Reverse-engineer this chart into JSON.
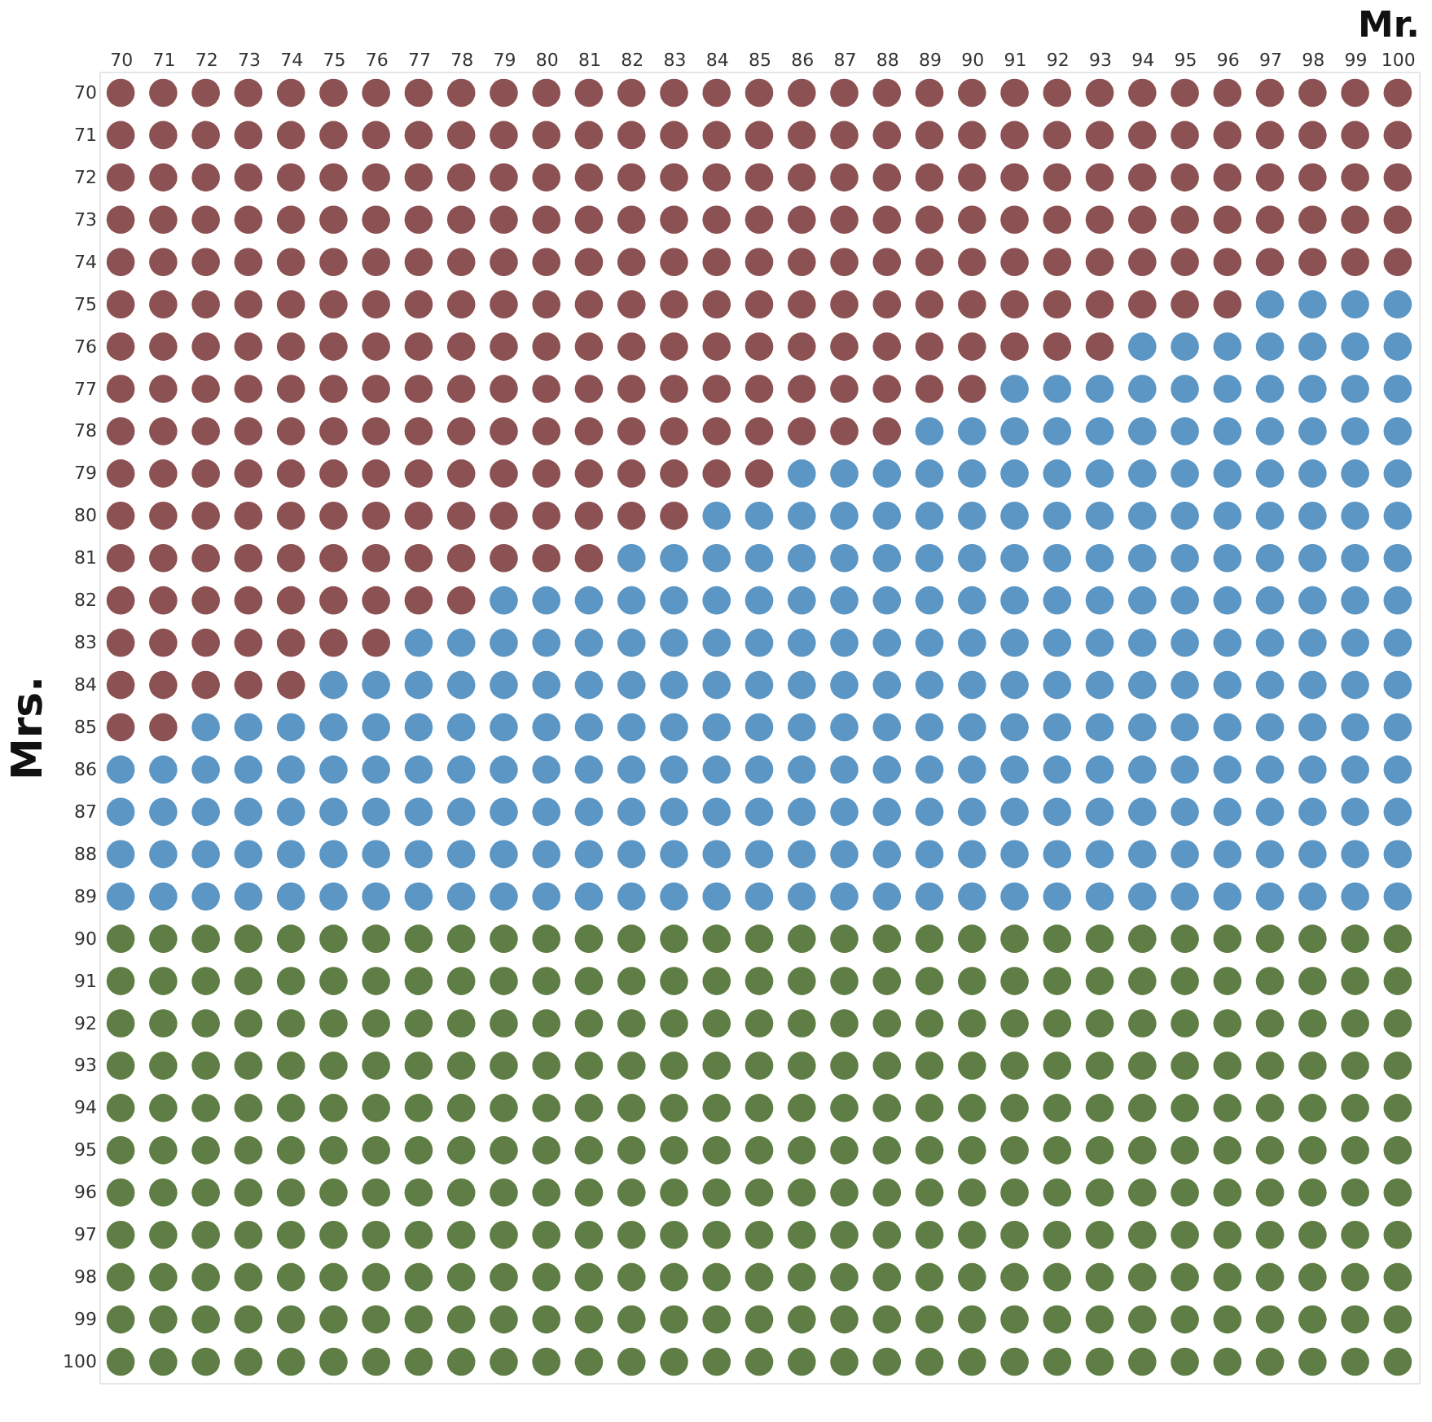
{
  "chart_data": {
    "type": "scatter",
    "xlabel": "Mr.",
    "ylabel": "Mrs.",
    "xlim": [
      69.5,
      100.5
    ],
    "ylim": [
      100.5,
      69.5
    ],
    "xticks": [
      70,
      71,
      72,
      73,
      74,
      75,
      76,
      77,
      78,
      79,
      80,
      81,
      82,
      83,
      84,
      85,
      86,
      87,
      88,
      89,
      90,
      91,
      92,
      93,
      94,
      95,
      96,
      97,
      98,
      99,
      100
    ],
    "yticks": [
      70,
      71,
      72,
      73,
      74,
      75,
      76,
      77,
      78,
      79,
      80,
      81,
      82,
      83,
      84,
      85,
      86,
      87,
      88,
      89,
      90,
      91,
      92,
      93,
      94,
      95,
      96,
      97,
      98,
      99,
      100
    ],
    "marker": "circle",
    "series": [
      {
        "color": "#8c5152",
        "x": [
          70,
          71,
          72,
          73,
          74,
          75,
          76,
          77,
          78,
          79,
          80,
          81,
          82,
          83,
          84,
          85,
          86,
          87,
          88,
          89,
          90,
          91,
          92,
          93,
          94,
          95,
          96,
          97,
          98,
          99,
          100,
          70,
          71,
          72,
          73,
          74,
          75,
          76,
          77,
          78,
          79,
          80,
          81,
          82,
          83,
          84,
          85,
          86,
          87,
          88,
          89,
          90,
          91,
          92,
          93,
          94,
          95,
          96,
          97,
          98,
          99,
          100,
          70,
          71,
          72,
          73,
          74,
          75,
          76,
          77,
          78,
          79,
          80,
          81,
          82,
          83,
          84,
          85,
          86,
          87,
          88,
          89,
          90,
          91,
          92,
          93,
          94,
          95,
          96,
          97,
          98,
          99,
          100,
          70,
          71,
          72,
          73,
          74,
          75,
          76,
          77,
          78,
          79,
          80,
          81,
          82,
          83,
          84,
          85,
          86,
          87,
          88,
          89,
          90,
          91,
          92,
          93,
          94,
          95,
          96,
          97,
          98,
          99,
          100,
          70,
          71,
          72,
          73,
          74,
          75,
          76,
          77,
          78,
          79,
          80,
          81,
          82,
          83,
          84,
          85,
          86,
          87,
          88,
          89,
          90,
          91,
          92,
          93,
          94,
          95,
          96,
          97,
          98,
          99,
          100,
          70,
          71,
          72,
          73,
          74,
          75,
          76,
          77,
          78,
          79,
          80,
          81,
          82,
          83,
          84,
          85,
          86,
          87,
          88,
          89,
          90,
          91,
          92,
          93,
          94,
          95,
          96,
          70,
          71,
          72,
          73,
          74,
          75,
          76,
          77,
          78,
          79,
          80,
          81,
          82,
          83,
          84,
          85,
          86,
          87,
          88,
          89,
          90,
          91,
          92,
          93,
          70,
          71,
          72,
          73,
          74,
          75,
          76,
          77,
          78,
          79,
          80,
          81,
          82,
          83,
          84,
          85,
          86,
          87,
          88,
          89,
          90,
          70,
          71,
          72,
          73,
          74,
          75,
          76,
          77,
          78,
          79,
          80,
          81,
          82,
          83,
          84,
          85,
          86,
          87,
          88,
          70,
          71,
          72,
          73,
          74,
          75,
          76,
          77,
          78,
          79,
          80,
          81,
          82,
          83,
          84,
          85,
          70,
          71,
          72,
          73,
          74,
          75,
          76,
          77,
          78,
          79,
          80,
          81,
          82,
          83,
          70,
          71,
          72,
          73,
          74,
          75,
          76,
          77,
          78,
          79,
          80,
          81,
          70,
          71,
          72,
          73,
          74,
          75,
          76,
          77,
          78,
          70,
          71,
          72,
          73,
          74,
          75,
          76,
          70,
          71,
          72,
          73,
          74,
          70,
          71
        ],
        "values": [
          70,
          70,
          70,
          70,
          70,
          70,
          70,
          70,
          70,
          70,
          70,
          70,
          70,
          70,
          70,
          70,
          70,
          70,
          70,
          70,
          70,
          70,
          70,
          70,
          70,
          70,
          70,
          70,
          70,
          70,
          70,
          71,
          71,
          71,
          71,
          71,
          71,
          71,
          71,
          71,
          71,
          71,
          71,
          71,
          71,
          71,
          71,
          71,
          71,
          71,
          71,
          71,
          71,
          71,
          71,
          71,
          71,
          71,
          71,
          71,
          71,
          71,
          72,
          72,
          72,
          72,
          72,
          72,
          72,
          72,
          72,
          72,
          72,
          72,
          72,
          72,
          72,
          72,
          72,
          72,
          72,
          72,
          72,
          72,
          72,
          72,
          72,
          72,
          72,
          72,
          72,
          72,
          72,
          73,
          73,
          73,
          73,
          73,
          73,
          73,
          73,
          73,
          73,
          73,
          73,
          73,
          73,
          73,
          73,
          73,
          73,
          73,
          73,
          73,
          73,
          73,
          73,
          73,
          73,
          73,
          73,
          73,
          73,
          73,
          74,
          74,
          74,
          74,
          74,
          74,
          74,
          74,
          74,
          74,
          74,
          74,
          74,
          74,
          74,
          74,
          74,
          74,
          74,
          74,
          74,
          74,
          74,
          74,
          74,
          74,
          74,
          74,
          74,
          74,
          74,
          75,
          75,
          75,
          75,
          75,
          75,
          75,
          75,
          75,
          75,
          75,
          75,
          75,
          75,
          75,
          75,
          75,
          75,
          75,
          75,
          75,
          75,
          75,
          75,
          75,
          75,
          75,
          76,
          76,
          76,
          76,
          76,
          76,
          76,
          76,
          76,
          76,
          76,
          76,
          76,
          76,
          76,
          76,
          76,
          76,
          76,
          76,
          76,
          76,
          76,
          76,
          77,
          77,
          77,
          77,
          77,
          77,
          77,
          77,
          77,
          77,
          77,
          77,
          77,
          77,
          77,
          77,
          77,
          77,
          77,
          77,
          77,
          78,
          78,
          78,
          78,
          78,
          78,
          78,
          78,
          78,
          78,
          78,
          78,
          78,
          78,
          78,
          78,
          78,
          78,
          78,
          79,
          79,
          79,
          79,
          79,
          79,
          79,
          79,
          79,
          79,
          79,
          79,
          79,
          79,
          79,
          79,
          80,
          80,
          80,
          80,
          80,
          80,
          80,
          80,
          80,
          80,
          80,
          80,
          80,
          80,
          81,
          81,
          81,
          81,
          81,
          81,
          81,
          81,
          81,
          81,
          81,
          81,
          82,
          82,
          82,
          82,
          82,
          82,
          82,
          82,
          82,
          83,
          83,
          83,
          83,
          83,
          83,
          83,
          84,
          84,
          84,
          84,
          84,
          85,
          85
        ]
      },
      {
        "color": "#5b96c5",
        "x": [
          97,
          98,
          99,
          100,
          94,
          95,
          96,
          97,
          98,
          99,
          100,
          91,
          92,
          93,
          94,
          95,
          96,
          97,
          98,
          99,
          100,
          89,
          90,
          91,
          92,
          93,
          94,
          95,
          96,
          97,
          98,
          99,
          100,
          86,
          87,
          88,
          89,
          90,
          91,
          92,
          93,
          94,
          95,
          96,
          97,
          98,
          99,
          100,
          84,
          85,
          86,
          87,
          88,
          89,
          90,
          91,
          92,
          93,
          94,
          95,
          96,
          97,
          98,
          99,
          100,
          82,
          83,
          84,
          85,
          86,
          87,
          88,
          89,
          90,
          91,
          92,
          93,
          94,
          95,
          96,
          97,
          98,
          99,
          100,
          79,
          80,
          81,
          82,
          83,
          84,
          85,
          86,
          87,
          88,
          89,
          90,
          91,
          92,
          93,
          94,
          95,
          96,
          97,
          98,
          99,
          100,
          77,
          78,
          79,
          80,
          81,
          82,
          83,
          84,
          85,
          86,
          87,
          88,
          89,
          90,
          91,
          92,
          93,
          94,
          95,
          96,
          97,
          98,
          99,
          100,
          75,
          76,
          77,
          78,
          79,
          80,
          81,
          82,
          83,
          84,
          85,
          86,
          87,
          88,
          89,
          90,
          91,
          92,
          93,
          94,
          95,
          96,
          97,
          98,
          99,
          100,
          72,
          73,
          74,
          75,
          76,
          77,
          78,
          79,
          80,
          81,
          82,
          83,
          84,
          85,
          86,
          87,
          88,
          89,
          90,
          91,
          92,
          93,
          94,
          95,
          96,
          97,
          98,
          99,
          100,
          70,
          71,
          72,
          73,
          74,
          75,
          76,
          77,
          78,
          79,
          80,
          81,
          82,
          83,
          84,
          85,
          86,
          87,
          88,
          89,
          90,
          91,
          92,
          93,
          94,
          95,
          96,
          97,
          98,
          99,
          100,
          70,
          71,
          72,
          73,
          74,
          75,
          76,
          77,
          78,
          79,
          80,
          81,
          82,
          83,
          84,
          85,
          86,
          87,
          88,
          89,
          90,
          91,
          92,
          93,
          94,
          95,
          96,
          97,
          98,
          99,
          100,
          70,
          71,
          72,
          73,
          74,
          75,
          76,
          77,
          78,
          79,
          80,
          81,
          82,
          83,
          84,
          85,
          86,
          87,
          88,
          89,
          90,
          91,
          92,
          93,
          94,
          95,
          96,
          97,
          98,
          99,
          100,
          70,
          71,
          72,
          73,
          74,
          75,
          76,
          77,
          78,
          79,
          80,
          81,
          82,
          83,
          84,
          85,
          86,
          87,
          88,
          89,
          90,
          91,
          92,
          93,
          94,
          95,
          96,
          97,
          98,
          99,
          100
        ],
        "values": [
          75,
          75,
          75,
          75,
          76,
          76,
          76,
          76,
          76,
          76,
          76,
          77,
          77,
          77,
          77,
          77,
          77,
          77,
          77,
          77,
          77,
          78,
          78,
          78,
          78,
          78,
          78,
          78,
          78,
          78,
          78,
          78,
          78,
          79,
          79,
          79,
          79,
          79,
          79,
          79,
          79,
          79,
          79,
          79,
          79,
          79,
          79,
          79,
          80,
          80,
          80,
          80,
          80,
          80,
          80,
          80,
          80,
          80,
          80,
          80,
          80,
          80,
          80,
          80,
          80,
          81,
          81,
          81,
          81,
          81,
          81,
          81,
          81,
          81,
          81,
          81,
          81,
          81,
          81,
          81,
          81,
          81,
          81,
          81,
          82,
          82,
          82,
          82,
          82,
          82,
          82,
          82,
          82,
          82,
          82,
          82,
          82,
          82,
          82,
          82,
          82,
          82,
          82,
          82,
          82,
          82,
          83,
          83,
          83,
          83,
          83,
          83,
          83,
          83,
          83,
          83,
          83,
          83,
          83,
          83,
          83,
          83,
          83,
          83,
          83,
          83,
          83,
          83,
          83,
          83,
          84,
          84,
          84,
          84,
          84,
          84,
          84,
          84,
          84,
          84,
          84,
          84,
          84,
          84,
          84,
          84,
          84,
          84,
          84,
          84,
          84,
          84,
          84,
          84,
          84,
          84,
          85,
          85,
          85,
          85,
          85,
          85,
          85,
          85,
          85,
          85,
          85,
          85,
          85,
          85,
          85,
          85,
          85,
          85,
          85,
          85,
          85,
          85,
          85,
          85,
          85,
          85,
          85,
          85,
          85,
          86,
          86,
          86,
          86,
          86,
          86,
          86,
          86,
          86,
          86,
          86,
          86,
          86,
          86,
          86,
          86,
          86,
          86,
          86,
          86,
          86,
          86,
          86,
          86,
          86,
          86,
          86,
          86,
          86,
          86,
          86,
          87,
          87,
          87,
          87,
          87,
          87,
          87,
          87,
          87,
          87,
          87,
          87,
          87,
          87,
          87,
          87,
          87,
          87,
          87,
          87,
          87,
          87,
          87,
          87,
          87,
          87,
          87,
          87,
          87,
          87,
          87,
          88,
          88,
          88,
          88,
          88,
          88,
          88,
          88,
          88,
          88,
          88,
          88,
          88,
          88,
          88,
          88,
          88,
          88,
          88,
          88,
          88,
          88,
          88,
          88,
          88,
          88,
          88,
          88,
          88,
          88,
          88,
          89,
          89,
          89,
          89,
          89,
          89,
          89,
          89,
          89,
          89,
          89,
          89,
          89,
          89,
          89,
          89,
          89,
          89,
          89,
          89,
          89,
          89,
          89,
          89,
          89,
          89,
          89,
          89,
          89,
          89,
          89
        ]
      },
      {
        "color": "#5f7e45",
        "x": [
          70,
          71,
          72,
          73,
          74,
          75,
          76,
          77,
          78,
          79,
          80,
          81,
          82,
          83,
          84,
          85,
          86,
          87,
          88,
          89,
          90,
          91,
          92,
          93,
          94,
          95,
          96,
          97,
          98,
          99,
          100,
          70,
          71,
          72,
          73,
          74,
          75,
          76,
          77,
          78,
          79,
          80,
          81,
          82,
          83,
          84,
          85,
          86,
          87,
          88,
          89,
          90,
          91,
          92,
          93,
          94,
          95,
          96,
          97,
          98,
          99,
          100,
          70,
          71,
          72,
          73,
          74,
          75,
          76,
          77,
          78,
          79,
          80,
          81,
          82,
          83,
          84,
          85,
          86,
          87,
          88,
          89,
          90,
          91,
          92,
          93,
          94,
          95,
          96,
          97,
          98,
          99,
          100,
          70,
          71,
          72,
          73,
          74,
          75,
          76,
          77,
          78,
          79,
          80,
          81,
          82,
          83,
          84,
          85,
          86,
          87,
          88,
          89,
          90,
          91,
          92,
          93,
          94,
          95,
          96,
          97,
          98,
          99,
          100,
          70,
          71,
          72,
          73,
          74,
          75,
          76,
          77,
          78,
          79,
          80,
          81,
          82,
          83,
          84,
          85,
          86,
          87,
          88,
          89,
          90,
          91,
          92,
          93,
          94,
          95,
          96,
          97,
          98,
          99,
          100,
          70,
          71,
          72,
          73,
          74,
          75,
          76,
          77,
          78,
          79,
          80,
          81,
          82,
          83,
          84,
          85,
          86,
          87,
          88,
          89,
          90,
          91,
          92,
          93,
          94,
          95,
          96,
          97,
          98,
          99,
          100,
          70,
          71,
          72,
          73,
          74,
          75,
          76,
          77,
          78,
          79,
          80,
          81,
          82,
          83,
          84,
          85,
          86,
          87,
          88,
          89,
          90,
          91,
          92,
          93,
          94,
          95,
          96,
          97,
          98,
          99,
          100,
          70,
          71,
          72,
          73,
          74,
          75,
          76,
          77,
          78,
          79,
          80,
          81,
          82,
          83,
          84,
          85,
          86,
          87,
          88,
          89,
          90,
          91,
          92,
          93,
          94,
          95,
          96,
          97,
          98,
          99,
          100,
          70,
          71,
          72,
          73,
          74,
          75,
          76,
          77,
          78,
          79,
          80,
          81,
          82,
          83,
          84,
          85,
          86,
          87,
          88,
          89,
          90,
          91,
          92,
          93,
          94,
          95,
          96,
          97,
          98,
          99,
          100,
          70,
          71,
          72,
          73,
          74,
          75,
          76,
          77,
          78,
          79,
          80,
          81,
          82,
          83,
          84,
          85,
          86,
          87,
          88,
          89,
          90,
          91,
          92,
          93,
          94,
          95,
          96,
          97,
          98,
          99,
          100,
          70,
          71,
          72,
          73,
          74,
          75,
          76,
          77,
          78,
          79,
          80,
          81,
          82,
          83,
          84,
          85,
          86,
          87,
          88,
          89,
          90,
          91,
          92,
          93,
          94,
          95,
          96,
          97,
          98,
          99,
          100
        ],
        "values": [
          90,
          90,
          90,
          90,
          90,
          90,
          90,
          90,
          90,
          90,
          90,
          90,
          90,
          90,
          90,
          90,
          90,
          90,
          90,
          90,
          90,
          90,
          90,
          90,
          90,
          90,
          90,
          90,
          90,
          90,
          90,
          91,
          91,
          91,
          91,
          91,
          91,
          91,
          91,
          91,
          91,
          91,
          91,
          91,
          91,
          91,
          91,
          91,
          91,
          91,
          91,
          91,
          91,
          91,
          91,
          91,
          91,
          91,
          91,
          91,
          91,
          91,
          92,
          92,
          92,
          92,
          92,
          92,
          92,
          92,
          92,
          92,
          92,
          92,
          92,
          92,
          92,
          92,
          92,
          92,
          92,
          92,
          92,
          92,
          92,
          92,
          92,
          92,
          92,
          92,
          92,
          92,
          92,
          93,
          93,
          93,
          93,
          93,
          93,
          93,
          93,
          93,
          93,
          93,
          93,
          93,
          93,
          93,
          93,
          93,
          93,
          93,
          93,
          93,
          93,
          93,
          93,
          93,
          93,
          93,
          93,
          93,
          93,
          93,
          94,
          94,
          94,
          94,
          94,
          94,
          94,
          94,
          94,
          94,
          94,
          94,
          94,
          94,
          94,
          94,
          94,
          94,
          94,
          94,
          94,
          94,
          94,
          94,
          94,
          94,
          94,
          94,
          94,
          94,
          94,
          95,
          95,
          95,
          95,
          95,
          95,
          95,
          95,
          95,
          95,
          95,
          95,
          95,
          95,
          95,
          95,
          95,
          95,
          95,
          95,
          95,
          95,
          95,
          95,
          95,
          95,
          95,
          95,
          95,
          95,
          95,
          96,
          96,
          96,
          96,
          96,
          96,
          96,
          96,
          96,
          96,
          96,
          96,
          96,
          96,
          96,
          96,
          96,
          96,
          96,
          96,
          96,
          96,
          96,
          96,
          96,
          96,
          96,
          96,
          96,
          96,
          96,
          97,
          97,
          97,
          97,
          97,
          97,
          97,
          97,
          97,
          97,
          97,
          97,
          97,
          97,
          97,
          97,
          97,
          97,
          97,
          97,
          97,
          97,
          97,
          97,
          97,
          97,
          97,
          97,
          97,
          97,
          97,
          98,
          98,
          98,
          98,
          98,
          98,
          98,
          98,
          98,
          98,
          98,
          98,
          98,
          98,
          98,
          98,
          98,
          98,
          98,
          98,
          98,
          98,
          98,
          98,
          98,
          98,
          98,
          98,
          98,
          98,
          98,
          99,
          99,
          99,
          99,
          99,
          99,
          99,
          99,
          99,
          99,
          99,
          99,
          99,
          99,
          99,
          99,
          99,
          99,
          99,
          99,
          99,
          99,
          99,
          99,
          99,
          99,
          99,
          99,
          99,
          99,
          99,
          100,
          100,
          100,
          100,
          100,
          100,
          100,
          100,
          100,
          100,
          100,
          100,
          100,
          100,
          100,
          100,
          100,
          100,
          100,
          100,
          100,
          100,
          100,
          100,
          100,
          100,
          100,
          100,
          100,
          100,
          100
        ]
      }
    ]
  }
}
